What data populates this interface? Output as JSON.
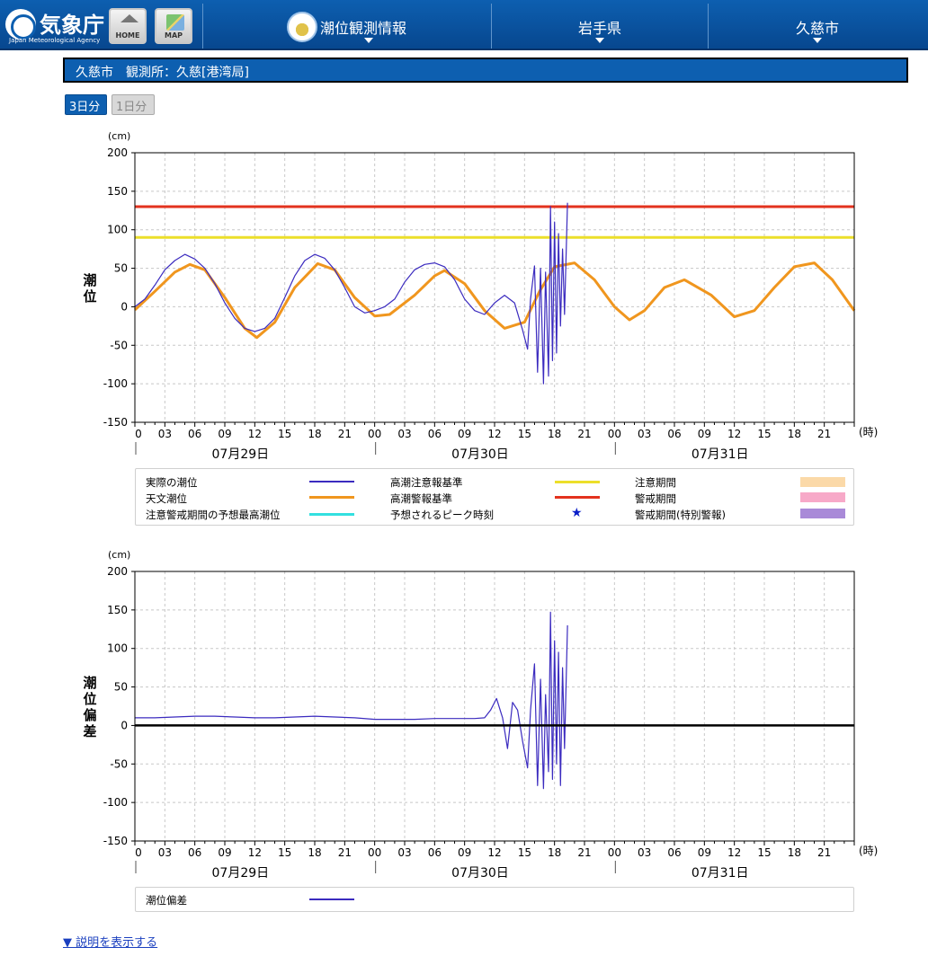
{
  "header": {
    "logo_jp": "気象庁",
    "logo_en": "Japan Meteorological Agency",
    "home_label": "HOME",
    "map_label": "MAP",
    "nav_obs": "潮位観測情報",
    "nav_pref": "岩手県",
    "nav_city": "久慈市"
  },
  "station_title": "久慈市　観測所：久慈[港湾局]",
  "span_buttons": {
    "three_day": "3日分",
    "one_day": "1日分",
    "selected": "3日分"
  },
  "colors": {
    "observed": "#3b2bbf",
    "astronomical": "#f0961e",
    "caution_level": "#ecdf2a",
    "warning_level": "#e3321e",
    "forecast_max": "#33e0e0",
    "peak_star": "#0a1ec8",
    "caution_period": "#fbd9a8",
    "warning_period": "#f7a9c8",
    "special_warning_period": "#a98ad8",
    "deviation": "#3b2bbf",
    "zero_line": "#000000"
  },
  "chart_data": [
    {
      "type": "line",
      "ylabel": "潮位",
      "yunit": "(cm)",
      "xunit": "(時)",
      "ylim": [
        -150,
        200
      ],
      "yticks": [
        200,
        150,
        100,
        50,
        0,
        -50,
        -100,
        -150
      ],
      "xlim_hours": [
        0,
        72
      ],
      "xtick_labels": [
        "0",
        "03",
        "06",
        "09",
        "12",
        "15",
        "18",
        "21",
        "00",
        "03",
        "06",
        "09",
        "12",
        "15",
        "18",
        "21",
        "00",
        "03",
        "06",
        "09",
        "12",
        "15",
        "18",
        "21"
      ],
      "days": [
        "07月29日",
        "07月30日",
        "07月31日"
      ],
      "grid": true,
      "reference_lines": [
        {
          "name": "高潮警報基準",
          "value": 130
        },
        {
          "name": "高潮注意報基準",
          "value": 90
        }
      ],
      "series": [
        {
          "name": "天文潮位",
          "x": [
            0,
            2,
            4,
            5.5,
            7,
            9,
            11,
            12.2,
            14,
            16,
            18.3,
            20,
            22,
            24,
            25.5,
            28,
            30,
            31,
            33,
            35,
            37,
            39,
            40.5,
            42,
            44,
            46,
            48,
            49.5,
            51,
            53,
            55,
            57.7,
            60,
            62,
            64,
            66,
            68,
            69.8,
            72
          ],
          "y": [
            -4,
            20,
            45,
            55,
            48,
            12,
            -28,
            -40,
            -20,
            25,
            56,
            48,
            12,
            -12,
            -10,
            15,
            40,
            47,
            30,
            -5,
            -28,
            -20,
            20,
            52,
            57,
            35,
            0,
            -17,
            -5,
            25,
            35,
            15,
            -13,
            -5,
            25,
            52,
            57,
            35,
            -5
          ]
        },
        {
          "name": "実際の潮位",
          "x": [
            0,
            1,
            2,
            3,
            4,
            5,
            6,
            7,
            8,
            9,
            10,
            11,
            12,
            13,
            14,
            15,
            16,
            17,
            18,
            19,
            20,
            21,
            22,
            23,
            24,
            25,
            26,
            27,
            28,
            29,
            30,
            31,
            32,
            33,
            34,
            35,
            36,
            37,
            38,
            38.8,
            39.3,
            39.6,
            40.0,
            40.3,
            40.6,
            40.9,
            41.1,
            41.4,
            41.6,
            41.8,
            42.0,
            42.2,
            42.4,
            42.6,
            42.8,
            43.0,
            43.3
          ],
          "y": [
            0,
            10,
            28,
            48,
            60,
            68,
            62,
            50,
            30,
            5,
            -15,
            -28,
            -32,
            -28,
            -15,
            12,
            40,
            60,
            68,
            63,
            48,
            25,
            0,
            -8,
            -5,
            0,
            10,
            32,
            48,
            55,
            57,
            52,
            35,
            10,
            -5,
            -10,
            5,
            15,
            5,
            -30,
            -55,
            10,
            53,
            -85,
            50,
            -100,
            45,
            -90,
            130,
            -70,
            110,
            -60,
            95,
            -25,
            75,
            -10,
            135
          ]
        }
      ]
    },
    {
      "type": "line",
      "ylabel": "潮位偏差",
      "yunit": "(cm)",
      "xunit": "(時)",
      "ylim": [
        -150,
        200
      ],
      "yticks": [
        200,
        150,
        100,
        50,
        0,
        -50,
        -100,
        -150
      ],
      "xlim_hours": [
        0,
        72
      ],
      "xtick_labels": [
        "0",
        "03",
        "06",
        "09",
        "12",
        "15",
        "18",
        "21",
        "00",
        "03",
        "06",
        "09",
        "12",
        "15",
        "18",
        "21",
        "00",
        "03",
        "06",
        "09",
        "12",
        "15",
        "18",
        "21"
      ],
      "days": [
        "07月29日",
        "07月30日",
        "07月31日"
      ],
      "grid": true,
      "zero_line": 0,
      "series": [
        {
          "name": "潮位偏差",
          "x": [
            0,
            2,
            4,
            6,
            8,
            10,
            12,
            14,
            16,
            18,
            20,
            22,
            24,
            26,
            28,
            30,
            32,
            34,
            35,
            35.6,
            36.2,
            36.8,
            37.3,
            37.8,
            38.3,
            38.8,
            39.3,
            39.6,
            40.0,
            40.3,
            40.6,
            40.9,
            41.1,
            41.4,
            41.6,
            41.8,
            42.0,
            42.2,
            42.4,
            42.6,
            42.8,
            43.0,
            43.3
          ],
          "y": [
            10,
            10,
            11,
            12,
            12,
            11,
            10,
            10,
            11,
            12,
            11,
            10,
            8,
            8,
            8,
            9,
            9,
            9,
            10,
            20,
            35,
            10,
            -30,
            30,
            20,
            -20,
            -55,
            20,
            80,
            -78,
            60,
            -82,
            40,
            -60,
            147,
            -70,
            110,
            -50,
            95,
            -78,
            75,
            -30,
            130
          ]
        }
      ]
    }
  ],
  "legend1": {
    "observed": "実際の潮位",
    "astronomical": "天文潮位",
    "forecast_max": "注意警戒期間の予想最高潮位",
    "caution_level": "高潮注意報基準",
    "warning_level": "高潮警報基準",
    "peak_time": "予想されるピーク時刻",
    "caution_period": "注意期間",
    "warning_period": "警戒期間",
    "special_warning_period": "警戒期間(特別警報)"
  },
  "legend2": {
    "deviation": "潮位偏差"
  },
  "explain_link": "▼ 説明を表示する"
}
